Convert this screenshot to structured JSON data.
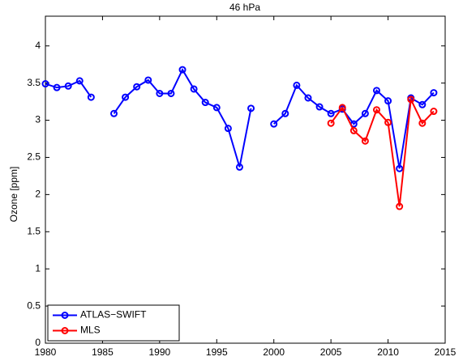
{
  "chart_data": {
    "type": "line",
    "title": "46 hPa",
    "ylabel": "Ozone [ppm]",
    "series": [
      {
        "name": "ATLAS−SWIFT",
        "color": "#0000ff",
        "x": [
          1980,
          1981,
          1982,
          1983,
          1984,
          1985,
          1986,
          1987,
          1988,
          1989,
          1990,
          1991,
          1992,
          1993,
          1994,
          1995,
          1996,
          1997,
          1998,
          1999,
          2000,
          2001,
          2002,
          2003,
          2004,
          2005,
          2006,
          2007,
          2008,
          2009,
          2010,
          2011,
          2012,
          2013,
          2014
        ],
        "values": [
          3.49,
          3.44,
          3.46,
          3.53,
          3.31,
          null,
          3.09,
          3.31,
          3.45,
          3.54,
          3.36,
          3.36,
          3.68,
          3.42,
          3.24,
          3.17,
          2.89,
          2.37,
          3.16,
          null,
          2.95,
          3.09,
          3.47,
          3.3,
          3.18,
          3.09,
          3.15,
          2.95,
          3.09,
          3.4,
          3.26,
          2.35,
          3.3,
          3.21,
          3.37
        ]
      },
      {
        "name": "MLS",
        "color": "#ff0000",
        "x": [
          2005,
          2006,
          2007,
          2008,
          2009,
          2010,
          2011,
          2012,
          2013,
          2014
        ],
        "values": [
          2.96,
          3.17,
          2.86,
          2.72,
          3.14,
          2.97,
          1.84,
          3.28,
          2.96,
          3.12
        ]
      }
    ],
    "xlim": [
      1980,
      2015
    ],
    "xticks": [
      1980,
      1985,
      1990,
      1995,
      2000,
      2005,
      2010,
      2015
    ],
    "ylim": [
      0,
      4.4
    ],
    "yticks": [
      0,
      0.5,
      1,
      1.5,
      2,
      2.5,
      3,
      3.5,
      4
    ],
    "grid": false,
    "legend": "lower left"
  }
}
